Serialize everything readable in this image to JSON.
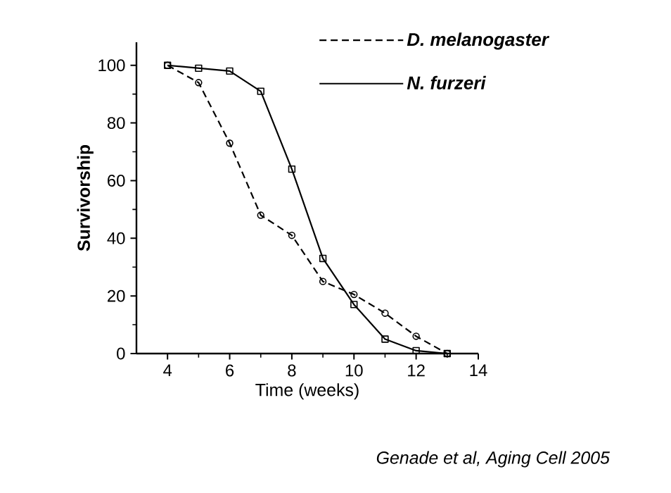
{
  "chart_data": {
    "type": "line",
    "xlabel": "Time (weeks)",
    "ylabel": "Survivorship",
    "x": [
      4,
      5,
      6,
      7,
      8,
      9,
      10,
      11,
      12,
      13
    ],
    "series": [
      {
        "name": "D. melanogaster",
        "color": "#000000",
        "marker": "circle",
        "line_style": "dashed",
        "values": [
          100,
          94,
          73,
          48,
          41,
          25,
          20.5,
          14,
          6,
          0
        ]
      },
      {
        "name": "N. furzeri",
        "color": "#000000",
        "marker": "square",
        "line_style": "solid",
        "values": [
          100,
          99,
          98,
          91,
          64,
          33,
          17,
          5,
          1,
          0
        ]
      }
    ],
    "xlim": [
      3,
      14
    ],
    "xticks": [
      4,
      6,
      8,
      10,
      12,
      14
    ],
    "ylim": [
      0,
      108
    ],
    "yticks": [
      0,
      20,
      40,
      60,
      80,
      100
    ],
    "grid": false,
    "legend": "top right",
    "annotations": [
      "Genade et al, Aging Cell 2005"
    ]
  }
}
